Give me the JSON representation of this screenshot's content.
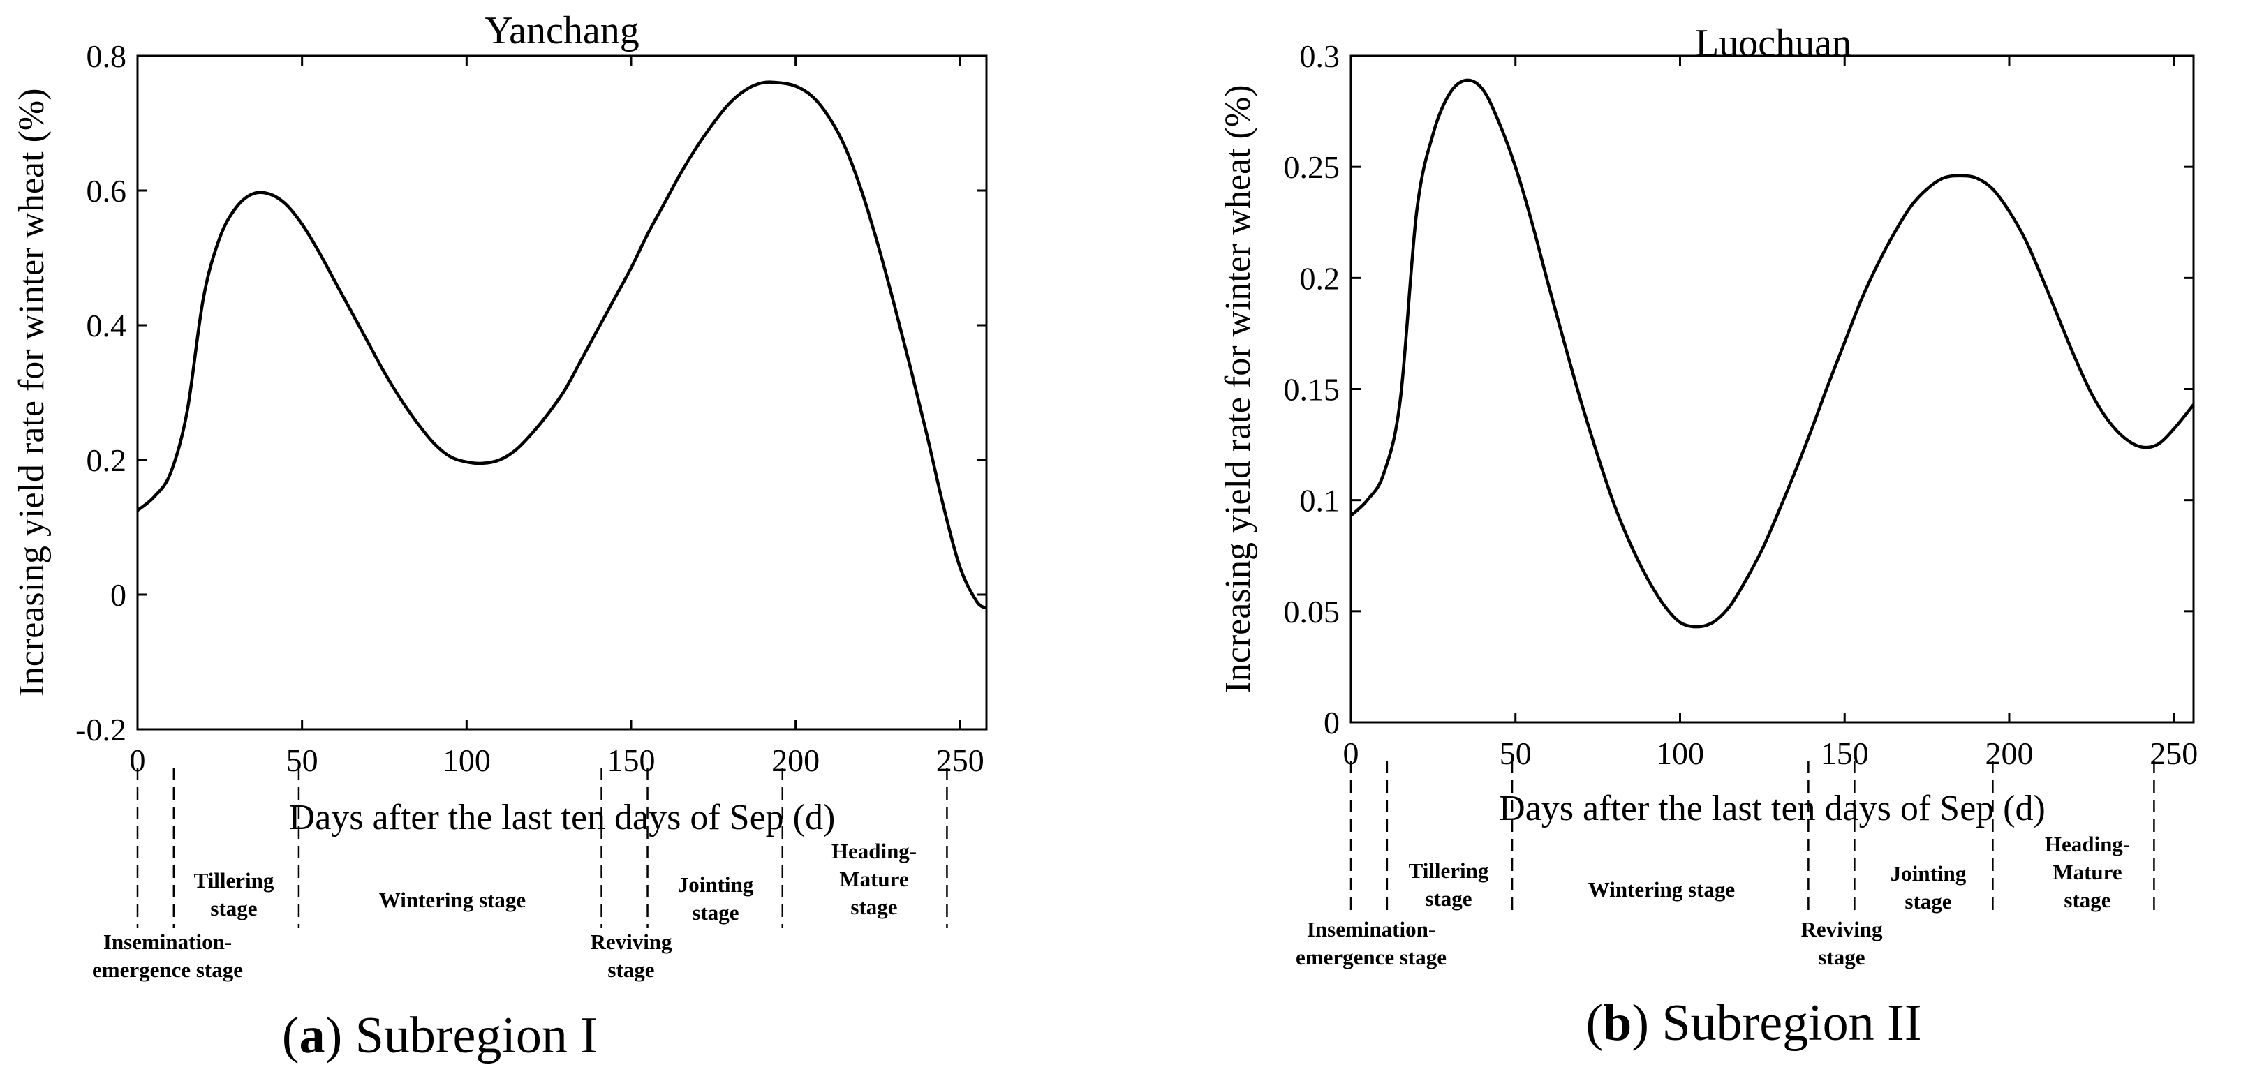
{
  "chart_data": [
    {
      "type": "line",
      "title": "Yanchang",
      "xlabel": "Days after the last ten days of Sep (d)",
      "ylabel": "Increasing yield rate for winter wheat (%)",
      "xlim": [
        0,
        258
      ],
      "ylim": [
        -0.2,
        0.8
      ],
      "xticks": [
        0,
        50,
        100,
        150,
        200,
        250
      ],
      "xtick_labels": [
        "0",
        "50",
        "100",
        "150",
        "200",
        "250"
      ],
      "yticks": [
        -0.2,
        0,
        0.2,
        0.4,
        0.6,
        0.8
      ],
      "ytick_labels": [
        "-0.2",
        "0",
        "0.2",
        "0.4",
        "0.6",
        "0.8"
      ],
      "x": [
        0,
        5,
        10,
        15,
        20,
        25,
        30,
        35,
        40,
        45,
        50,
        55,
        60,
        65,
        70,
        75,
        80,
        85,
        90,
        95,
        100,
        105,
        110,
        115,
        120,
        125,
        130,
        135,
        140,
        145,
        150,
        155,
        160,
        165,
        170,
        175,
        180,
        185,
        190,
        195,
        200,
        205,
        210,
        215,
        220,
        225,
        230,
        235,
        240,
        245,
        250,
        255,
        258
      ],
      "y": [
        0.125,
        0.145,
        0.18,
        0.27,
        0.44,
        0.53,
        0.575,
        0.595,
        0.595,
        0.58,
        0.55,
        0.51,
        0.465,
        0.42,
        0.375,
        0.33,
        0.29,
        0.255,
        0.225,
        0.205,
        0.197,
        0.195,
        0.2,
        0.215,
        0.24,
        0.27,
        0.305,
        0.35,
        0.395,
        0.44,
        0.485,
        0.535,
        0.58,
        0.625,
        0.665,
        0.7,
        0.73,
        0.75,
        0.76,
        0.76,
        0.755,
        0.74,
        0.71,
        0.665,
        0.6,
        0.52,
        0.43,
        0.335,
        0.235,
        0.13,
        0.04,
        -0.01,
        -0.02
      ],
      "stage_boundaries": [
        0,
        11,
        49,
        141,
        155,
        196,
        246
      ],
      "stages": [
        {
          "lines": [
            "Insemination-",
            "emergence stage"
          ],
          "from": 0,
          "to": 11
        },
        {
          "lines": [
            "Tillering",
            "stage"
          ],
          "from": 11,
          "to": 49
        },
        {
          "lines": [
            "Wintering stage"
          ],
          "from": 49,
          "to": 141
        },
        {
          "lines": [
            "Reviving",
            "stage"
          ],
          "from": 141,
          "to": 155
        },
        {
          "lines": [
            "Jointing",
            "stage"
          ],
          "from": 155,
          "to": 196
        },
        {
          "lines": [
            "Heading-",
            "Mature",
            "stage"
          ],
          "from": 196,
          "to": 246
        }
      ]
    },
    {
      "type": "line",
      "title": "Luochuan",
      "xlabel": "Days after the last ten days of Sep (d)",
      "ylabel": "Increasing yield rate for winter wheat (%)",
      "xlim": [
        0,
        256
      ],
      "ylim": [
        0,
        0.3
      ],
      "xticks": [
        0,
        50,
        100,
        150,
        200,
        250
      ],
      "xtick_labels": [
        "0",
        "50",
        "100",
        "150",
        "200",
        "250"
      ],
      "yticks": [
        0,
        0.05,
        0.1,
        0.15,
        0.2,
        0.25,
        0.3
      ],
      "ytick_labels": [
        "0",
        "0.05",
        "0.1",
        "0.15",
        "0.2",
        "0.25",
        "0.3"
      ],
      "x": [
        0,
        5,
        10,
        15,
        20,
        25,
        30,
        35,
        40,
        45,
        50,
        55,
        60,
        65,
        70,
        75,
        80,
        85,
        90,
        95,
        100,
        105,
        110,
        115,
        120,
        125,
        130,
        135,
        140,
        145,
        150,
        155,
        160,
        165,
        170,
        175,
        180,
        185,
        190,
        195,
        200,
        205,
        210,
        215,
        220,
        225,
        230,
        235,
        240,
        245,
        250,
        256
      ],
      "y": [
        0.093,
        0.1,
        0.112,
        0.145,
        0.23,
        0.265,
        0.283,
        0.289,
        0.285,
        0.27,
        0.25,
        0.225,
        0.197,
        0.17,
        0.144,
        0.12,
        0.098,
        0.08,
        0.065,
        0.053,
        0.045,
        0.043,
        0.045,
        0.052,
        0.064,
        0.078,
        0.095,
        0.113,
        0.132,
        0.152,
        0.171,
        0.19,
        0.206,
        0.22,
        0.232,
        0.24,
        0.245,
        0.246,
        0.245,
        0.24,
        0.23,
        0.217,
        0.2,
        0.182,
        0.164,
        0.148,
        0.136,
        0.128,
        0.124,
        0.125,
        0.132,
        0.143
      ],
      "stage_boundaries": [
        0,
        11,
        49,
        139,
        153,
        195,
        244
      ],
      "stages": [
        {
          "lines": [
            "Insemination-",
            "emergence stage"
          ],
          "from": 0,
          "to": 11
        },
        {
          "lines": [
            "Tillering",
            "stage"
          ],
          "from": 11,
          "to": 49
        },
        {
          "lines": [
            "Wintering stage"
          ],
          "from": 49,
          "to": 139
        },
        {
          "lines": [
            "Reviving",
            "stage"
          ],
          "from": 139,
          "to": 153
        },
        {
          "lines": [
            "Jointing",
            "stage"
          ],
          "from": 153,
          "to": 195
        },
        {
          "lines": [
            "Heading-",
            "Mature",
            "stage"
          ],
          "from": 195,
          "to": 244
        }
      ]
    }
  ],
  "captions": [
    {
      "letter": "a",
      "text": "Subregion I"
    },
    {
      "letter": "b",
      "text": "Subregion II"
    }
  ]
}
